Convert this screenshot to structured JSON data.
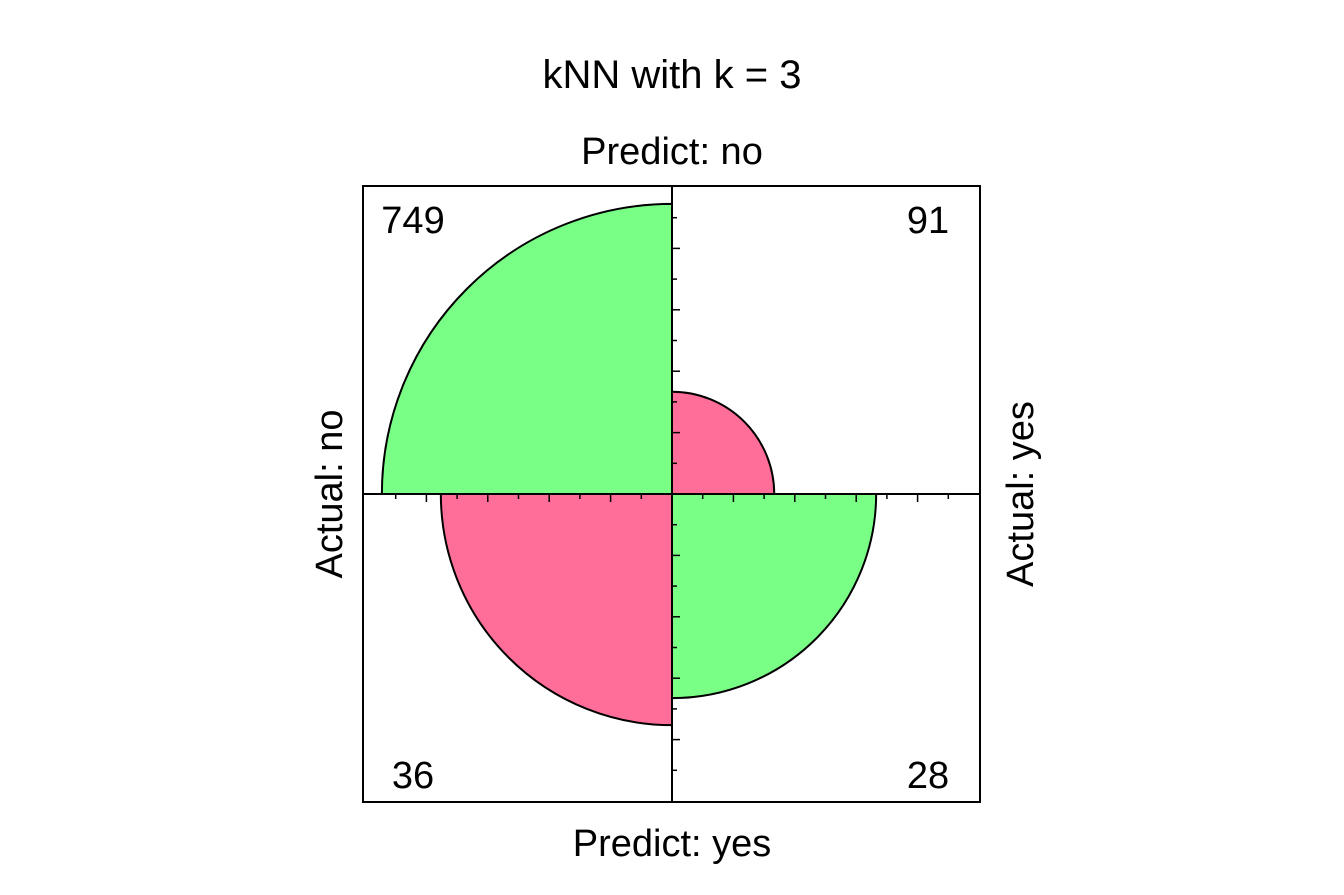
{
  "chart_data": {
    "type": "fourfold",
    "title": "kNN with k = 3",
    "labels": {
      "top": "Predict: no",
      "bottom": "Predict: yes",
      "left": "Actual: no",
      "right": "Actual: yes"
    },
    "cells": [
      {
        "name": "actual-no-predict-no",
        "quadrant": "top-left",
        "value": 749,
        "label": "749",
        "color": "#7AFF86",
        "correct": true
      },
      {
        "name": "actual-yes-predict-no",
        "quadrant": "top-right",
        "value": 91,
        "label": "91",
        "color": "#FF6E99",
        "correct": false
      },
      {
        "name": "actual-no-predict-yes",
        "quadrant": "bottom-left",
        "value": 36,
        "label": "36",
        "color": "#FF6E99",
        "correct": false
      },
      {
        "name": "actual-yes-predict-yes",
        "quadrant": "bottom-right",
        "value": 28,
        "label": "28",
        "color": "#7AFF86",
        "correct": true
      }
    ],
    "relative_radius": {
      "top-left": 0.945,
      "top-right": 0.333,
      "bottom-left": 0.753,
      "bottom-right": 0.665
    },
    "tick_marks": true
  }
}
